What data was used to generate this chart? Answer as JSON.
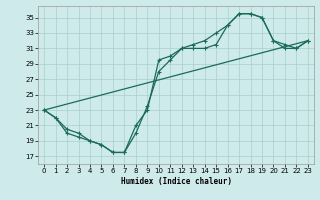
{
  "title": "",
  "xlabel": "Humidex (Indice chaleur)",
  "bg_color": "#ceeaea",
  "line_color": "#1a6b5a",
  "grid_color": "#a8d0d0",
  "xlim": [
    -0.5,
    23.5
  ],
  "ylim": [
    16,
    36.5
  ],
  "yticks": [
    17,
    19,
    21,
    23,
    25,
    27,
    29,
    31,
    33,
    35
  ],
  "xticks": [
    0,
    1,
    2,
    3,
    4,
    5,
    6,
    7,
    8,
    9,
    10,
    11,
    12,
    13,
    14,
    15,
    16,
    17,
    18,
    19,
    20,
    21,
    22,
    23
  ],
  "line1_x": [
    0,
    1,
    2,
    3,
    4,
    5,
    6,
    7,
    8,
    9,
    10,
    11,
    12,
    13,
    14,
    15,
    16,
    17,
    18,
    19,
    20,
    21,
    22,
    23
  ],
  "line1_y": [
    23,
    22,
    20,
    19.5,
    19,
    18.5,
    17.5,
    17.5,
    21,
    23,
    29.5,
    30,
    31,
    31,
    31,
    31.5,
    34,
    35.5,
    35.5,
    35,
    32,
    31,
    31,
    32
  ],
  "line2_x": [
    0,
    1,
    2,
    3,
    4,
    5,
    6,
    7,
    8,
    9,
    10,
    11,
    12,
    13,
    14,
    15,
    16,
    17,
    18,
    19,
    20,
    21,
    22,
    23
  ],
  "line2_y": [
    23,
    22,
    20.5,
    20,
    19,
    18.5,
    17.5,
    17.5,
    20,
    23.5,
    28,
    29.5,
    31,
    31.5,
    32,
    33,
    34,
    35.5,
    35.5,
    35,
    32,
    31.5,
    31,
    32
  ],
  "line3_x": [
    0,
    23
  ],
  "line3_y": [
    23,
    32
  ],
  "xlabel_fontsize": 5.5,
  "tick_fontsize": 5
}
